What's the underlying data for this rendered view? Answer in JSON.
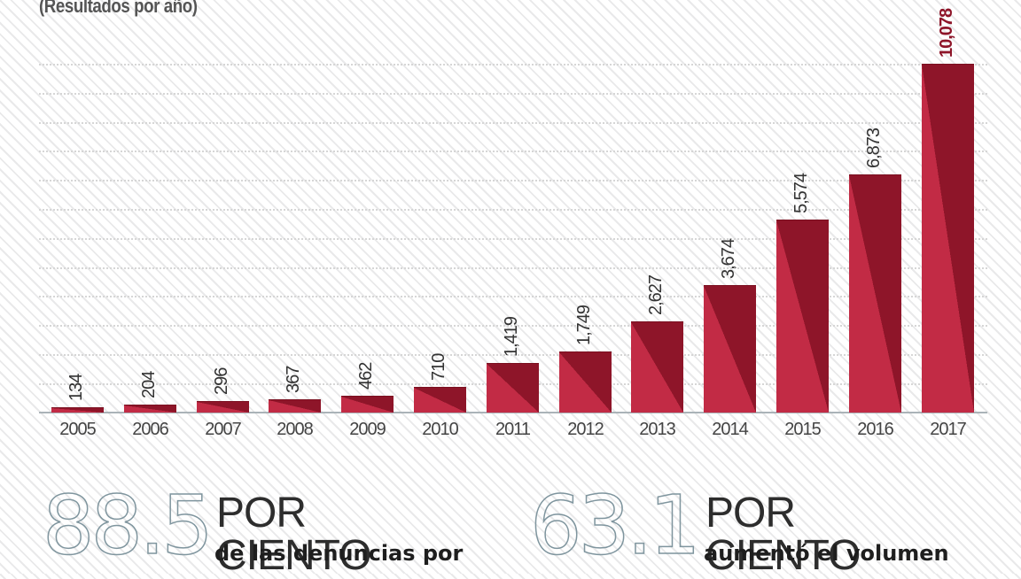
{
  "header": {
    "subtitle": "(Resultados por año)"
  },
  "colors": {
    "bar_dark": "#8e1529",
    "bar_light": "#c22b45",
    "stat_number": "#7f959e",
    "text": "#333333"
  },
  "chart_data": {
    "type": "bar",
    "title": "",
    "subtitle": "(Resultados por año)",
    "xlabel": "",
    "ylabel": "",
    "categories": [
      "2005",
      "2006",
      "2007",
      "2008",
      "2009",
      "2010",
      "2011",
      "2012",
      "2013",
      "2014",
      "2015",
      "2016",
      "2017"
    ],
    "values": [
      134,
      204,
      296,
      367,
      462,
      710,
      1419,
      1749,
      2627,
      3674,
      5574,
      6873,
      10078
    ],
    "value_labels": [
      "134",
      "204",
      "296",
      "367",
      "462",
      "710",
      "1,419",
      "1,749",
      "2,627",
      "3,674",
      "5,574",
      "6,873",
      "10,078"
    ],
    "ylim": [
      0,
      10078
    ],
    "grid": true,
    "legend": null
  },
  "stats": [
    {
      "number": "88.5",
      "heading": "POR CIENTO",
      "description": "de las denuncias por"
    },
    {
      "number": "63.1",
      "heading": "POR CIENTO",
      "description": "aumentó el volumen"
    }
  ]
}
